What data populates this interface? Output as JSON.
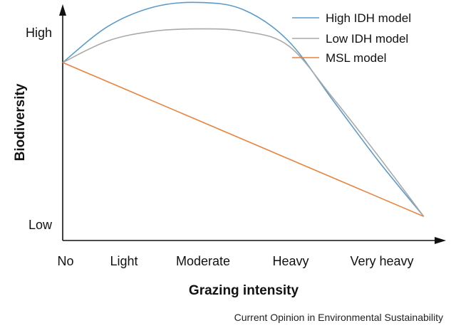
{
  "chart_data": {
    "type": "line",
    "xlabel": "Grazing intensity",
    "ylabel": "Biodiversity",
    "categories": [
      "No",
      "Light",
      "Moderate",
      "Heavy",
      "Very heavy"
    ],
    "y_ticks": [
      "High",
      "Low"
    ],
    "source": "Current Opinion in Environmental Sustainability",
    "legend_position": "top-right",
    "grid": false,
    "xlim": [
      0,
      4.2
    ],
    "ylim": [
      0,
      1
    ],
    "series": [
      {
        "name": "High IDH model",
        "color": "#5b9bc9",
        "x": [
          0,
          0.5,
          1.0,
          1.5,
          2.0,
          2.5,
          3.0,
          3.5,
          4.0
        ],
        "y": [
          0.74,
          0.89,
          0.97,
          0.99,
          0.96,
          0.83,
          0.58,
          0.33,
          0.1
        ]
      },
      {
        "name": "Low IDH model",
        "color": "#a9a9a9",
        "x": [
          0,
          0.5,
          1.0,
          1.5,
          2.0,
          2.5,
          3.0,
          3.5,
          4.0
        ],
        "y": [
          0.74,
          0.83,
          0.87,
          0.88,
          0.87,
          0.81,
          0.59,
          0.35,
          0.1
        ]
      },
      {
        "name": "MSL model",
        "color": "#e8823d",
        "x": [
          0,
          4.0
        ],
        "y": [
          0.74,
          0.1
        ]
      }
    ]
  }
}
